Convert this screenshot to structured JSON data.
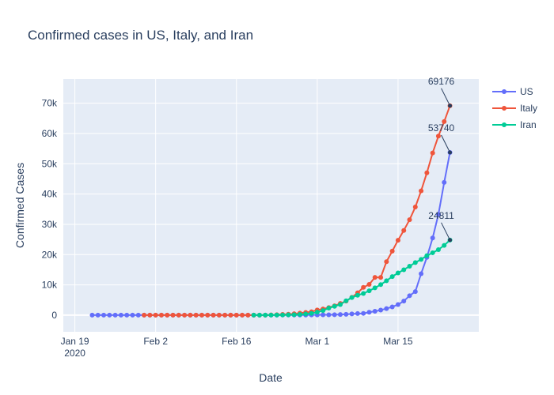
{
  "chart_data": {
    "type": "line",
    "title": "Confirmed cases in US, Italy, and Iran",
    "xlabel": "Date",
    "ylabel": "Confirmed Cases",
    "x_ticks": [
      {
        "date": "2020-01-19",
        "label": "Jan 19",
        "sublabel": "2020"
      },
      {
        "date": "2020-02-02",
        "label": "Feb 2",
        "sublabel": ""
      },
      {
        "date": "2020-02-16",
        "label": "Feb 16",
        "sublabel": ""
      },
      {
        "date": "2020-03-01",
        "label": "Mar 1",
        "sublabel": ""
      },
      {
        "date": "2020-03-15",
        "label": "Mar 15",
        "sublabel": ""
      }
    ],
    "y_ticks": [
      {
        "value": 0,
        "label": "0"
      },
      {
        "value": 10000,
        "label": "10k"
      },
      {
        "value": 20000,
        "label": "20k"
      },
      {
        "value": 30000,
        "label": "30k"
      },
      {
        "value": 40000,
        "label": "40k"
      },
      {
        "value": 50000,
        "label": "50k"
      },
      {
        "value": 60000,
        "label": "60k"
      },
      {
        "value": 70000,
        "label": "70k"
      }
    ],
    "xlim": [
      "2020-01-17",
      "2020-03-29"
    ],
    "ylim": [
      -5500,
      78000
    ],
    "grid": true,
    "legend": "top-right outside",
    "series": [
      {
        "name": "US",
        "color": "#636efa",
        "x_start": "2020-01-22",
        "values": [
          1,
          1,
          2,
          2,
          5,
          5,
          5,
          5,
          5,
          7,
          8,
          8,
          11,
          11,
          11,
          11,
          11,
          11,
          11,
          11,
          12,
          12,
          13,
          13,
          13,
          13,
          13,
          13,
          13,
          13,
          15,
          15,
          15,
          51,
          51,
          57,
          58,
          60,
          68,
          74,
          98,
          118,
          149,
          217,
          262,
          402,
          518,
          583,
          959,
          1281,
          1663,
          2179,
          2727,
          3499,
          4632,
          6421,
          7786,
          13680,
          19101,
          25493,
          33276,
          43847,
          53740
        ]
      },
      {
        "name": "Italy",
        "color": "#ef553b",
        "x_start": "2020-01-31",
        "values": [
          2,
          2,
          2,
          2,
          2,
          2,
          2,
          3,
          3,
          3,
          3,
          3,
          3,
          3,
          3,
          3,
          3,
          3,
          3,
          3,
          3,
          20,
          62,
          155,
          229,
          322,
          453,
          655,
          888,
          1128,
          1694,
          2036,
          2502,
          3089,
          3858,
          4636,
          5883,
          7375,
          9172,
          10149,
          12462,
          12462,
          17660,
          21157,
          24747,
          27980,
          31506,
          35713,
          41035,
          47021,
          53578,
          59138,
          63927,
          69176
        ]
      },
      {
        "name": "Iran",
        "color": "#00cc96",
        "x_start": "2020-02-19",
        "values": [
          2,
          5,
          18,
          28,
          43,
          61,
          95,
          139,
          245,
          388,
          593,
          978,
          1501,
          2336,
          2922,
          3513,
          4747,
          5823,
          6566,
          7161,
          8042,
          9000,
          10075,
          11364,
          12729,
          13938,
          14991,
          16169,
          17361,
          18407,
          19644,
          20610,
          21638,
          23049,
          24811
        ]
      }
    ],
    "annotations": [
      {
        "series": "Italy",
        "text": "69176"
      },
      {
        "series": "US",
        "text": "53740"
      },
      {
        "series": "Iran",
        "text": "24811"
      }
    ]
  }
}
